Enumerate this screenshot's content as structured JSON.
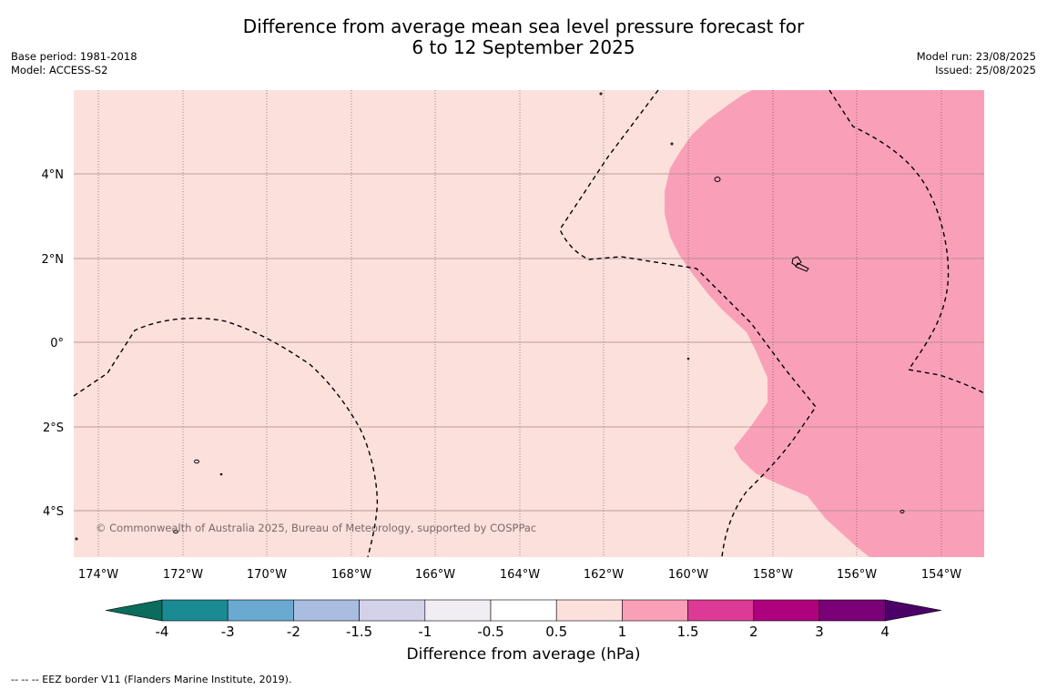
{
  "title": {
    "line1": "Difference from average mean sea level pressure forecast for",
    "line2": "6 to 12 September 2025"
  },
  "meta": {
    "base_period": "Base period: 1981-2018",
    "model": "Model: ACCESS-S2",
    "model_run": "Model run: 23/08/2025",
    "issued": "Issued: 25/08/2025"
  },
  "map": {
    "x_ticks": [
      "174°W",
      "172°W",
      "170°W",
      "168°W",
      "166°W",
      "164°W",
      "162°W",
      "160°W",
      "158°W",
      "156°W",
      "154°W"
    ],
    "y_ticks": [
      "4°N",
      "2°N",
      "0°",
      "2°S",
      "4°S"
    ],
    "copyright": "© Commonwealth of Australia 2025, Bureau of Meteorology, supported by COSPPac",
    "background_color": "#fbe0dc",
    "anomaly_1_to_1_5_color": "#f9a0b8"
  },
  "colorbar": {
    "ticks": [
      "-4",
      "-3",
      "-2",
      "-1.5",
      "-1",
      "-0.5",
      "0.5",
      "1",
      "1.5",
      "2",
      "3",
      "4"
    ],
    "colors": [
      "#1a8b93",
      "#6aa9d0",
      "#a9bde0",
      "#d3d2e9",
      "#f0eef3",
      "#ffffff",
      "#fbe0dc",
      "#f9a0b8",
      "#dd3a97",
      "#ae017e",
      "#7a0177"
    ],
    "under_color": "#0b6b5c",
    "over_color": "#4a0068",
    "label": "Difference from average (hPa)"
  },
  "footer": "--  --  -- EEZ border V11 (Flanders Marine Institute, 2019)."
}
